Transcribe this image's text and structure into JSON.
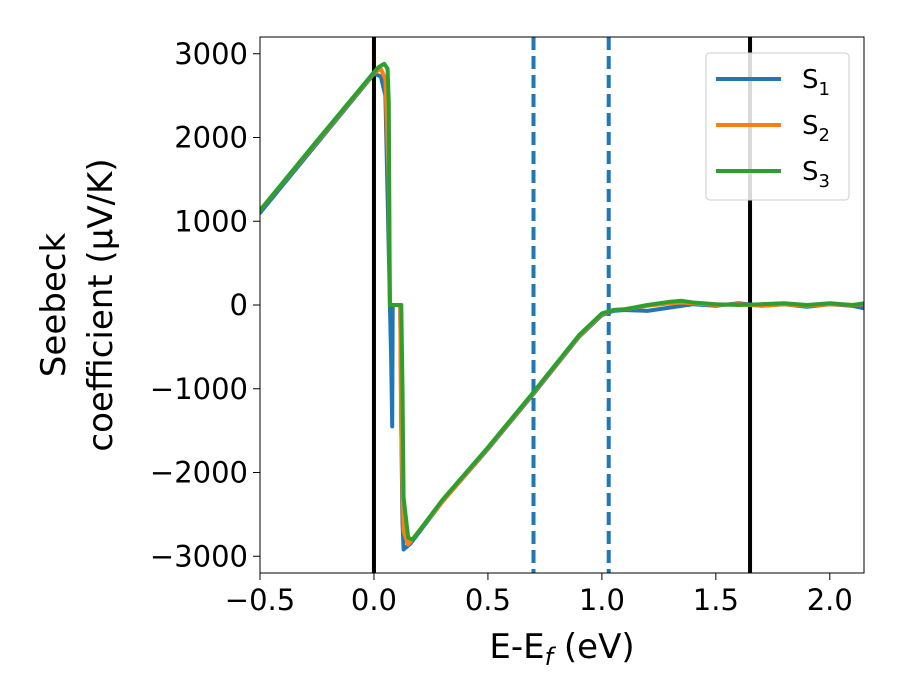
{
  "chart_data": {
    "type": "line",
    "xlabel": "E-E_f (eV)",
    "ylabel": "Seebeck coefficient (μV/K)",
    "ylabel_lines": [
      "Seebeck",
      "coefficient  (μV/K)"
    ],
    "xlim": [
      -0.5,
      2.15
    ],
    "ylim": [
      -3200,
      3200
    ],
    "xticks": [
      -0.5,
      0.0,
      0.5,
      1.0,
      1.5,
      2.0
    ],
    "xtick_labels": [
      "−0.5",
      "0.0",
      "0.5",
      "1.0",
      "1.5",
      "2.0"
    ],
    "yticks": [
      -3000,
      -2000,
      -1000,
      0,
      1000,
      2000,
      3000
    ],
    "ytick_labels": [
      "−3000",
      "−2000",
      "−1000",
      "0",
      "1000",
      "2000",
      "3000"
    ],
    "grid": false,
    "legend_position": "top-right",
    "vlines": [
      {
        "x": 0.0,
        "style": "solid",
        "color": "#000000"
      },
      {
        "x": 1.65,
        "style": "solid",
        "color": "#000000"
      },
      {
        "x": 0.7,
        "style": "dashed",
        "color": "#1f77b4"
      },
      {
        "x": 1.03,
        "style": "dashed",
        "color": "#1f77b4"
      }
    ],
    "series": [
      {
        "name": "S1",
        "color": "#1f77b4",
        "points": [
          [
            -0.5,
            1100
          ],
          [
            -0.25,
            1930
          ],
          [
            0.0,
            2760
          ],
          [
            0.03,
            2730
          ],
          [
            0.05,
            2500
          ],
          [
            0.06,
            1300
          ],
          [
            0.07,
            0
          ],
          [
            0.075,
            -600
          ],
          [
            0.08,
            -1450
          ],
          [
            0.082,
            0
          ],
          [
            0.115,
            0
          ],
          [
            0.12,
            -1500
          ],
          [
            0.125,
            -2600
          ],
          [
            0.13,
            -2920
          ],
          [
            0.16,
            -2850
          ],
          [
            0.3,
            -2350
          ],
          [
            0.5,
            -1720
          ],
          [
            0.7,
            -1060
          ],
          [
            0.9,
            -380
          ],
          [
            1.0,
            -120
          ],
          [
            1.05,
            -70
          ],
          [
            1.1,
            -60
          ],
          [
            1.2,
            -70
          ],
          [
            1.3,
            -30
          ],
          [
            1.4,
            10
          ],
          [
            1.5,
            -10
          ],
          [
            1.6,
            20
          ],
          [
            1.7,
            -10
          ],
          [
            1.8,
            10
          ],
          [
            1.9,
            -20
          ],
          [
            2.0,
            10
          ],
          [
            2.1,
            -10
          ],
          [
            2.15,
            -40
          ]
        ]
      },
      {
        "name": "S2",
        "color": "#ff7f0e",
        "points": [
          [
            -0.5,
            1130
          ],
          [
            -0.25,
            1950
          ],
          [
            0.0,
            2770
          ],
          [
            0.03,
            2820
          ],
          [
            0.05,
            2700
          ],
          [
            0.065,
            1500
          ],
          [
            0.07,
            0
          ],
          [
            0.115,
            0
          ],
          [
            0.12,
            -1500
          ],
          [
            0.13,
            -2700
          ],
          [
            0.15,
            -2860
          ],
          [
            0.3,
            -2350
          ],
          [
            0.5,
            -1710
          ],
          [
            0.7,
            -1050
          ],
          [
            0.9,
            -370
          ],
          [
            1.0,
            -110
          ],
          [
            1.05,
            -60
          ],
          [
            1.1,
            -50
          ],
          [
            1.2,
            -10
          ],
          [
            1.3,
            20
          ],
          [
            1.35,
            30
          ],
          [
            1.4,
            20
          ],
          [
            1.5,
            0
          ],
          [
            1.6,
            10
          ],
          [
            1.7,
            -10
          ],
          [
            1.8,
            10
          ],
          [
            1.9,
            -10
          ],
          [
            2.0,
            10
          ],
          [
            2.1,
            0
          ],
          [
            2.15,
            10
          ]
        ]
      },
      {
        "name": "S3",
        "color": "#2ca02c",
        "points": [
          [
            -0.5,
            1130
          ],
          [
            -0.25,
            1960
          ],
          [
            0.0,
            2780
          ],
          [
            0.02,
            2840
          ],
          [
            0.045,
            2880
          ],
          [
            0.06,
            2820
          ],
          [
            0.065,
            2400
          ],
          [
            0.068,
            800
          ],
          [
            0.07,
            0
          ],
          [
            0.12,
            0
          ],
          [
            0.125,
            -1000
          ],
          [
            0.13,
            -2300
          ],
          [
            0.15,
            -2780
          ],
          [
            0.17,
            -2800
          ],
          [
            0.3,
            -2330
          ],
          [
            0.5,
            -1700
          ],
          [
            0.7,
            -1040
          ],
          [
            0.9,
            -360
          ],
          [
            1.0,
            -100
          ],
          [
            1.05,
            -60
          ],
          [
            1.1,
            -50
          ],
          [
            1.2,
            0
          ],
          [
            1.3,
            40
          ],
          [
            1.35,
            50
          ],
          [
            1.4,
            30
          ],
          [
            1.5,
            10
          ],
          [
            1.6,
            0
          ],
          [
            1.7,
            10
          ],
          [
            1.8,
            20
          ],
          [
            1.9,
            0
          ],
          [
            2.0,
            20
          ],
          [
            2.1,
            0
          ],
          [
            2.15,
            20
          ]
        ]
      }
    ],
    "legend": [
      {
        "base": "S",
        "sub": "1",
        "color": "#1f77b4"
      },
      {
        "base": "S",
        "sub": "2",
        "color": "#ff7f0e"
      },
      {
        "base": "S",
        "sub": "3",
        "color": "#2ca02c"
      }
    ]
  }
}
